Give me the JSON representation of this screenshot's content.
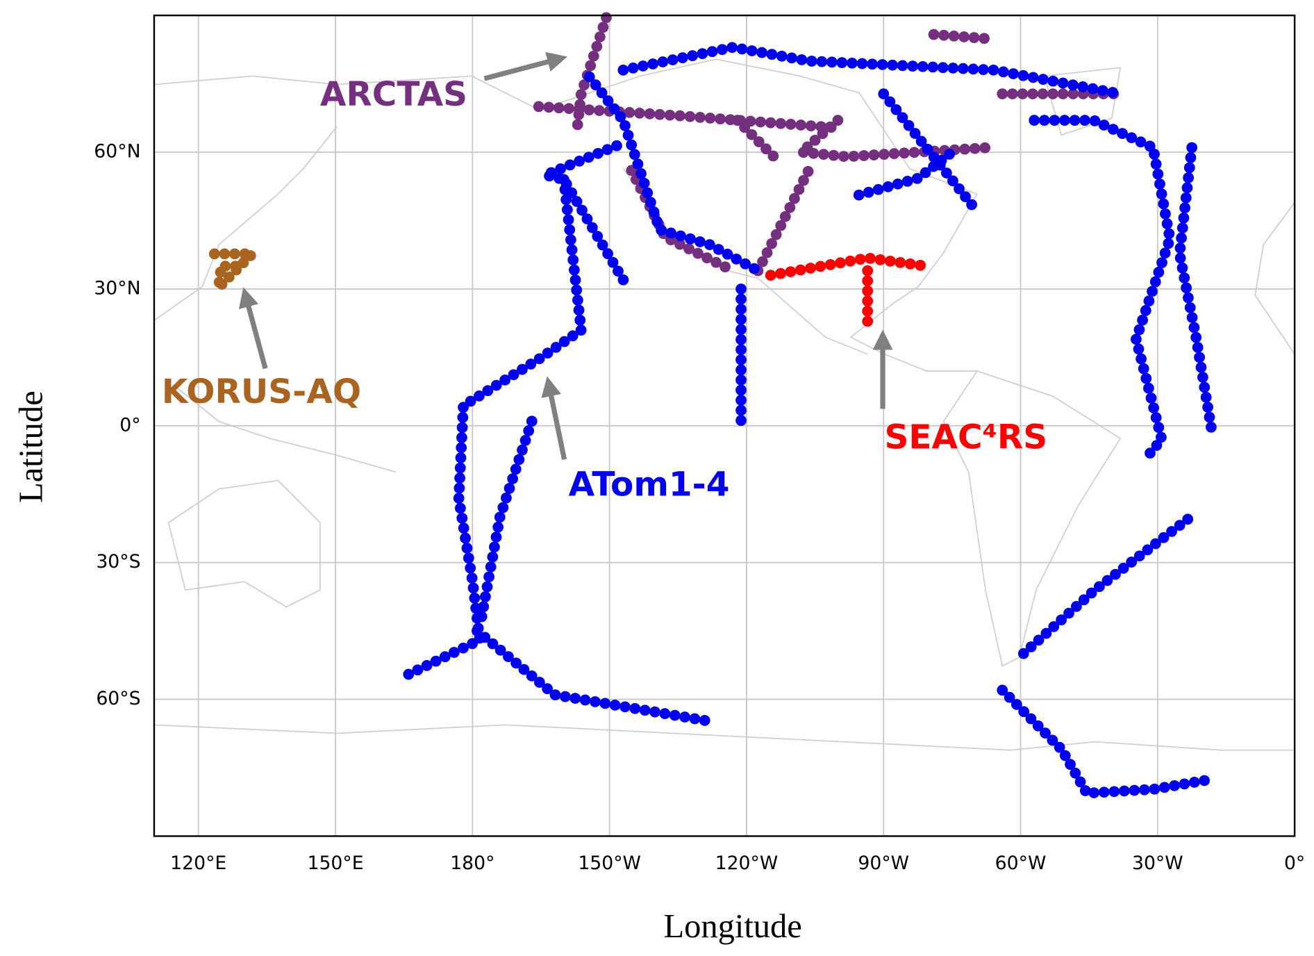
{
  "chart_data": {
    "type": "scatter",
    "xlabel": "Longitude",
    "ylabel": "Latitude",
    "xlim": [
      110.3,
      360
    ],
    "ylim": [
      -90,
      90
    ],
    "xticks": [
      {
        "value": 120,
        "label": "120°E"
      },
      {
        "value": 150,
        "label": "150°E"
      },
      {
        "value": 180,
        "label": "180°"
      },
      {
        "value": 210,
        "label": "150°W"
      },
      {
        "value": 240,
        "label": "120°W"
      },
      {
        "value": 270,
        "label": "90°W"
      },
      {
        "value": 300,
        "label": "60°W"
      },
      {
        "value": 330,
        "label": "30°W"
      },
      {
        "value": 360,
        "label": "0°"
      }
    ],
    "yticks": [
      {
        "value": 60,
        "label": "60°N"
      },
      {
        "value": 30,
        "label": "30°N"
      },
      {
        "value": 0,
        "label": "0°"
      },
      {
        "value": -30,
        "label": "30°S"
      },
      {
        "value": -60,
        "label": "60°S"
      }
    ],
    "grid": true,
    "series": [
      {
        "name": "ARCTAS",
        "color": "#74307f",
        "x": [
          209.3,
          203.8,
          203,
          null,
          194.5,
          225,
          259,
          null,
          214.8,
          222.2,
          237,
          null,
          242.5,
          253.6,
          null,
          296,
          321.8,
          null,
          281,
          294,
          null,
          238,
          246,
          null,
          260,
          252,
          262,
          293
        ],
        "y": [
          89.5,
          72.8,
          66,
          null,
          70,
          68,
          65.4,
          null,
          56,
          41.4,
          34,
          null,
          34,
          56,
          null,
          72.8,
          72.8,
          null,
          85.8,
          84.8,
          null,
          67,
          59,
          null,
          67,
          60,
          59,
          61
        ]
      },
      {
        "name": "KORUS-AQ",
        "color": "#a86420",
        "x": [
          123.5,
          131.8,
          124.4,
          125,
          129
        ],
        "y": [
          37.7,
          37.7,
          30.3,
          35,
          35
        ]
      },
      {
        "name": "ATom1-4",
        "color": "#0000ee",
        "x": [
          200,
          203.8,
          194.5,
          178,
          177,
          180,
          181.6,
          165,
          null,
          181,
          198,
          233,
          null,
          193,
          186,
          182,
          null,
          213,
          200,
          196,
          213,
          null,
          205.6,
          213,
          221,
          232,
          242.5,
          null,
          213,
          237,
          253.6,
          294.2,
          321.8,
          null,
          238.8,
          238.8,
          null,
          270,
          290.5,
          null,
          264.6,
          277.6,
          285,
          null,
          303,
          316,
          329,
          332.7,
          325.3,
          330.9,
          327,
          null,
          337.5,
          334.8,
          338.5,
          342,
          null,
          336.6,
          316.3,
          300.6,
          null,
          296,
          309,
          314.5,
          329.2,
          340.3
        ],
        "y": [
          54,
          21,
          14.6,
          4.4,
          -16,
          -34,
          -47,
          -55,
          null,
          -45,
          -59,
          -65,
          null,
          1,
          -20,
          -42,
          null,
          32,
          54,
          55,
          62,
          null,
          76.5,
          67,
          43,
          39.7,
          34,
          null,
          78,
          83,
          80,
          78,
          72.8,
          null,
          30,
          0,
          null,
          72.8,
          47,
          null,
          50.6,
          54.3,
          60,
          null,
          67,
          67,
          61,
          41,
          19,
          -3,
          -7.6,
          null,
          61,
          37.7,
          19,
          -2,
          null,
          -20.5,
          -36,
          -50,
          null,
          -58,
          -71,
          -80.6,
          -79.7,
          -77.8
        ]
      },
      {
        "name": "SEAC⁴RS",
        "color": "#ff0000",
        "x": [
          245.3,
          266.5,
          279.4,
          null,
          266.5,
          266.5
        ],
        "y": [
          33,
          36.8,
          35,
          null,
          34,
          21
        ]
      }
    ]
  }
}
